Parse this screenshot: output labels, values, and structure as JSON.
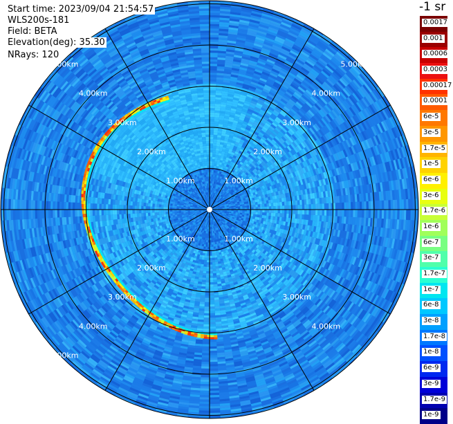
{
  "info": {
    "start_time": "Start time: 2023/09/04 21:54:57",
    "instrument": "WLS200s-181",
    "field": "Field: BETA",
    "elevation": "Elevation(deg): 35.30",
    "nrays": "NRays: 120"
  },
  "colorbar": {
    "unit": "-1 sr",
    "ticks": [
      "0.0017",
      "0.001",
      "0.0006",
      "0.0003",
      "0.00017",
      "0.0001",
      "6e-5",
      "3e-5",
      "1.7e-5",
      "1e-5",
      "6e-6",
      "3e-6",
      "1.7e-6",
      "1e-6",
      "6e-7",
      "3e-7",
      "1.7e-7",
      "1e-7",
      "6e-8",
      "3e-8",
      "1.7e-8",
      "1e-8",
      "6e-9",
      "3e-9",
      "1.7e-9",
      "1e-9"
    ],
    "colors": [
      "#7a0000",
      "#9a0000",
      "#c80000",
      "#ec1010",
      "#ff3200",
      "#ff5a00",
      "#ff7800",
      "#ff9600",
      "#ffb400",
      "#ffd200",
      "#fff000",
      "#e8ff10",
      "#c8ff37",
      "#a0ff5a",
      "#78ff82",
      "#50ffaa",
      "#2affd2",
      "#00e6f0",
      "#00c8ff",
      "#00a0ff",
      "#0078ff",
      "#0050ff",
      "#0028f0",
      "#0000d8",
      "#0000b0",
      "#000088"
    ]
  },
  "range_rings": {
    "labels": [
      "1.00km",
      "2.00km",
      "3.00km",
      "4.00km",
      "5.00km"
    ]
  }
}
